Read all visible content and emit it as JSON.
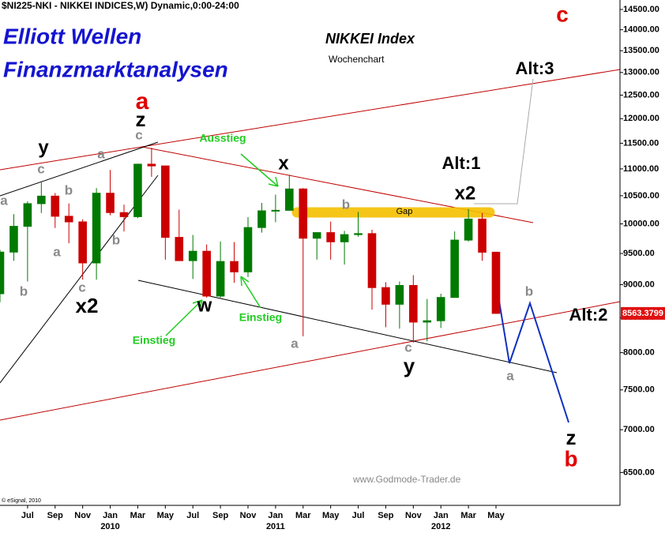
{
  "chart_data": {
    "type": "candlestick",
    "header": "$NI225-NKI - NIKKEI INDICES,W) Dynamic,0:00-24:00",
    "title": "Elliott Wellen",
    "subtitle": "Finanzmarktanalysen",
    "chart_name": "NIKKEI Index",
    "chart_period": "Wochenchart",
    "source": "www.Godmode-Trader.de",
    "copyright": "© eSignal, 2010",
    "gap_label": "Gap",
    "x": [
      "2009-05",
      "2009-06",
      "2009-07",
      "2009-08",
      "2009-09",
      "2009-10",
      "2009-11",
      "2009-12",
      "2010-01",
      "2010-02",
      "2010-03",
      "2010-04",
      "2010-05",
      "2010-06",
      "2010-07",
      "2010-08",
      "2010-09",
      "2010-10",
      "2010-11",
      "2010-12",
      "2011-01",
      "2011-02",
      "2011-03",
      "2011-04",
      "2011-05",
      "2011-06",
      "2011-07",
      "2011-08",
      "2011-09",
      "2011-10",
      "2011-11",
      "2011-12",
      "2012-01",
      "2012-02",
      "2012-03",
      "2012-04",
      "2012-05"
    ],
    "open": [
      8860,
      9523,
      9958,
      10357,
      10493,
      10133,
      10035,
      9346,
      10546,
      10198,
      10126,
      11090,
      11057,
      9769,
      9383,
      9537,
      8824,
      9369,
      9202,
      9937,
      10229,
      10238,
      10624,
      9755,
      9850,
      9694,
      9816,
      9833,
      8955,
      8700,
      8988,
      8435,
      8455,
      8803,
      9723,
      10084,
      9521
    ],
    "high": [
      9560,
      10170,
      10400,
      10768,
      10550,
      10360,
      10080,
      10640,
      10980,
      10340,
      11100,
      11410,
      11060,
      10250,
      9810,
      9650,
      9700,
      9690,
      10120,
      10370,
      10520,
      10890,
      10640,
      9850,
      10040,
      9880,
      10210,
      9900,
      9040,
      9050,
      9150,
      8780,
      8860,
      9870,
      10260,
      10190,
      9530
    ],
    "low": [
      8730,
      9380,
      9050,
      10190,
      9930,
      9670,
      9080,
      9080,
      10150,
      9870,
      10100,
      10850,
      9400,
      9380,
      9090,
      8800,
      8800,
      9030,
      9120,
      9850,
      10030,
      10230,
      8230,
      9400,
      9400,
      9320,
      9780,
      8620,
      8360,
      8340,
      8140,
      8160,
      8350,
      8800,
      9700,
      9380,
      8560
    ],
    "close": [
      9523,
      9958,
      10357,
      10493,
      10133,
      10035,
      9346,
      10546,
      10198,
      10126,
      11090,
      11057,
      9769,
      9383,
      9537,
      8824,
      9369,
      9202,
      9937,
      10229,
      10238,
      10624,
      9755,
      9850,
      9694,
      9816,
      9833,
      8955,
      8700,
      8988,
      8435,
      8455,
      8803,
      9723,
      10084,
      9521,
      8563
    ],
    "up_color": "#007a00",
    "down_color": "#cc0000",
    "last_price": 8563.3799,
    "log_scale": true,
    "ylim": [
      6140,
      14740
    ],
    "yticks": [
      {
        "value": 14500,
        "label": "14500.00"
      },
      {
        "value": 14000,
        "label": "14000.00"
      },
      {
        "value": 13500,
        "label": "13500.00"
      },
      {
        "value": 13000,
        "label": "13000.00"
      },
      {
        "value": 12500,
        "label": "12500.00"
      },
      {
        "value": 12000,
        "label": "12000.00"
      },
      {
        "value": 11500,
        "label": "11500.00"
      },
      {
        "value": 11000,
        "label": "11000.00"
      },
      {
        "value": 10500,
        "label": "10500.00"
      },
      {
        "value": 10000,
        "label": "10000.00"
      },
      {
        "value": 9500,
        "label": "9500.00"
      },
      {
        "value": 9000,
        "label": "9000.00"
      },
      {
        "value": 8500,
        "label": "8500.00"
      },
      {
        "value": 8000,
        "label": "8000.00"
      },
      {
        "value": 7500,
        "label": "7500.00"
      },
      {
        "value": 7000,
        "label": "7000.00"
      },
      {
        "value": 6500,
        "label": "6500.00"
      }
    ],
    "xlim": [
      "2009-05",
      "2013-02"
    ],
    "xticks": [
      {
        "value": "2009-07",
        "label": "Jul"
      },
      {
        "value": "2009-09",
        "label": "Sep"
      },
      {
        "value": "2009-11",
        "label": "Nov"
      },
      {
        "value": "2010-01",
        "label": "Jan"
      },
      {
        "value": "2010-03",
        "label": "Mar"
      },
      {
        "value": "2010-05",
        "label": "May"
      },
      {
        "value": "2010-07",
        "label": "Jul"
      },
      {
        "value": "2010-09",
        "label": "Sep"
      },
      {
        "value": "2010-11",
        "label": "Nov"
      },
      {
        "value": "2011-01",
        "label": "Jan"
      },
      {
        "value": "2011-03",
        "label": "Mar"
      },
      {
        "value": "2011-05",
        "label": "May"
      },
      {
        "value": "2011-07",
        "label": "Jul"
      },
      {
        "value": "2011-09",
        "label": "Sep"
      },
      {
        "value": "2011-11",
        "label": "Nov"
      },
      {
        "value": "2012-01",
        "label": "Jan"
      },
      {
        "value": "2012-03",
        "label": "Mar"
      },
      {
        "value": "2012-05",
        "label": "May"
      }
    ],
    "x_year_labels": [
      {
        "value": "2010-01",
        "label": "2010"
      },
      {
        "value": "2011-01",
        "label": "2011"
      },
      {
        "value": "2012-01",
        "label": "2012"
      }
    ],
    "annotations": [
      "c",
      "a",
      "z",
      "y",
      "c",
      "a",
      "c",
      "b",
      "a",
      "a",
      "b",
      "b",
      "c",
      "x2",
      "Ausstieg",
      "x",
      "Alt:1",
      "x2",
      "b",
      "w",
      "Einstieg",
      "Einstieg",
      "a",
      "c",
      "y",
      "b",
      "a",
      "Alt:2",
      "Alt:3",
      "z",
      "b"
    ]
  }
}
